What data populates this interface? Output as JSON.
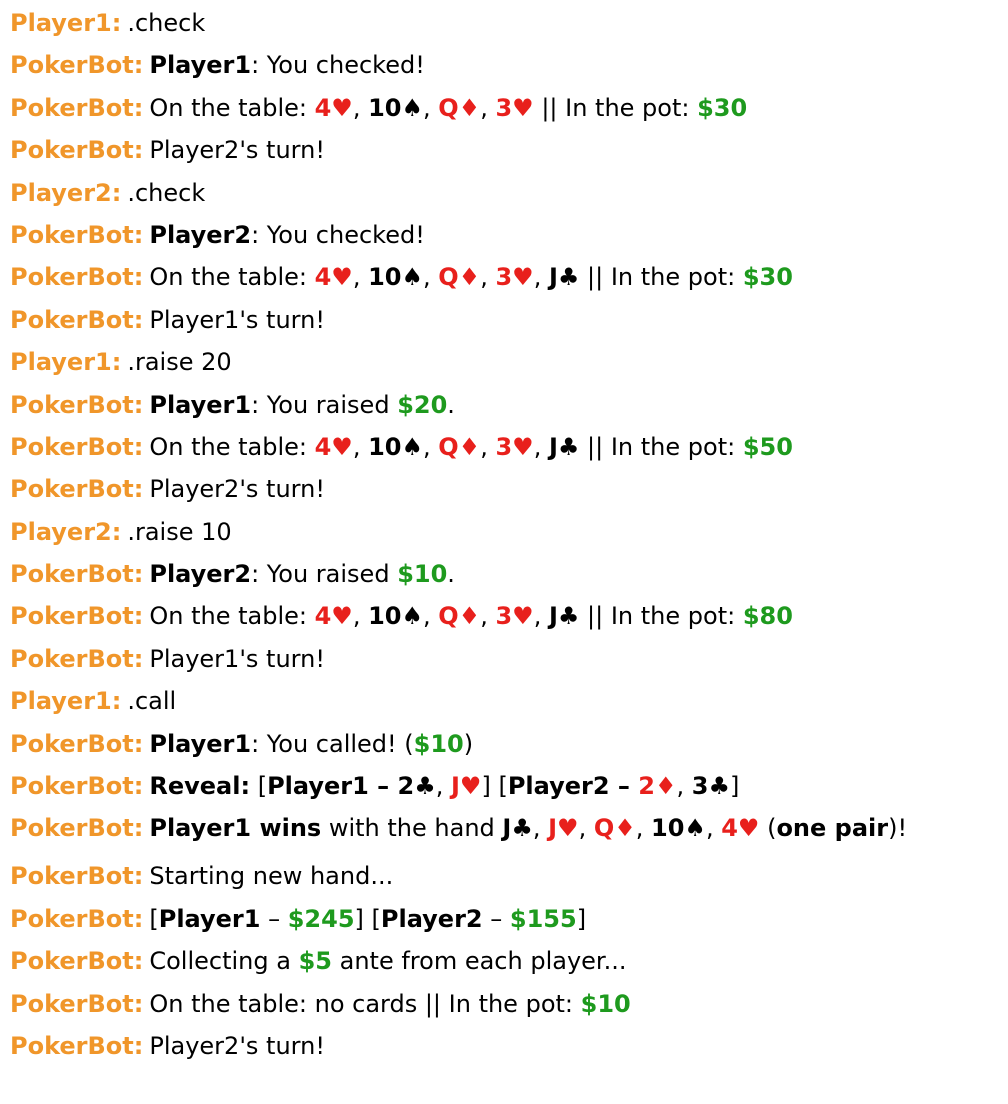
{
  "messages": [
    {
      "sender": "Player1:",
      "parts": [
        {
          "t": ".check",
          "s": "plain"
        }
      ]
    },
    {
      "sender": "PokerBot:",
      "parts": [
        {
          "t": "Player1",
          "s": "bold"
        },
        {
          "t": ": You checked!",
          "s": "plain"
        }
      ]
    },
    {
      "sender": "PokerBot:",
      "parts": [
        {
          "t": "On the table: ",
          "s": "plain"
        },
        {
          "t": "4♥",
          "s": "red"
        },
        {
          "t": ", ",
          "s": "plain"
        },
        {
          "t": "10♠",
          "s": "black"
        },
        {
          "t": ", ",
          "s": "plain"
        },
        {
          "t": "Q♦",
          "s": "red"
        },
        {
          "t": ", ",
          "s": "plain"
        },
        {
          "t": "3♥",
          "s": "red"
        },
        {
          "t": " || In the pot: ",
          "s": "plain"
        },
        {
          "t": "$30",
          "s": "money"
        }
      ]
    },
    {
      "sender": "PokerBot:",
      "parts": [
        {
          "t": "Player2's turn!",
          "s": "plain"
        }
      ]
    },
    {
      "sender": "Player2:",
      "parts": [
        {
          "t": ".check",
          "s": "plain"
        }
      ]
    },
    {
      "sender": "PokerBot:",
      "parts": [
        {
          "t": "Player2",
          "s": "bold"
        },
        {
          "t": ": You checked!",
          "s": "plain"
        }
      ]
    },
    {
      "sender": "PokerBot:",
      "parts": [
        {
          "t": "On the table: ",
          "s": "plain"
        },
        {
          "t": "4♥",
          "s": "red"
        },
        {
          "t": ", ",
          "s": "plain"
        },
        {
          "t": "10♠",
          "s": "black"
        },
        {
          "t": ", ",
          "s": "plain"
        },
        {
          "t": "Q♦",
          "s": "red"
        },
        {
          "t": ", ",
          "s": "plain"
        },
        {
          "t": "3♥",
          "s": "red"
        },
        {
          "t": ", ",
          "s": "plain"
        },
        {
          "t": "J♣",
          "s": "black"
        },
        {
          "t": " || In the pot: ",
          "s": "plain"
        },
        {
          "t": "$30",
          "s": "money"
        }
      ]
    },
    {
      "sender": "PokerBot:",
      "parts": [
        {
          "t": "Player1's turn!",
          "s": "plain"
        }
      ]
    },
    {
      "sender": "Player1:",
      "parts": [
        {
          "t": ".raise 20",
          "s": "plain"
        }
      ]
    },
    {
      "sender": "PokerBot:",
      "parts": [
        {
          "t": "Player1",
          "s": "bold"
        },
        {
          "t": ": You raised ",
          "s": "plain"
        },
        {
          "t": "$20",
          "s": "money"
        },
        {
          "t": ".",
          "s": "plain"
        }
      ]
    },
    {
      "sender": "PokerBot:",
      "parts": [
        {
          "t": "On the table: ",
          "s": "plain"
        },
        {
          "t": "4♥",
          "s": "red"
        },
        {
          "t": ", ",
          "s": "plain"
        },
        {
          "t": "10♠",
          "s": "black"
        },
        {
          "t": ", ",
          "s": "plain"
        },
        {
          "t": "Q♦",
          "s": "red"
        },
        {
          "t": ", ",
          "s": "plain"
        },
        {
          "t": "3♥",
          "s": "red"
        },
        {
          "t": ", ",
          "s": "plain"
        },
        {
          "t": "J♣",
          "s": "black"
        },
        {
          "t": " || In the pot: ",
          "s": "plain"
        },
        {
          "t": "$50",
          "s": "money"
        }
      ]
    },
    {
      "sender": "PokerBot:",
      "parts": [
        {
          "t": "Player2's turn!",
          "s": "plain"
        }
      ]
    },
    {
      "sender": "Player2:",
      "parts": [
        {
          "t": ".raise 10",
          "s": "plain"
        }
      ]
    },
    {
      "sender": "PokerBot:",
      "parts": [
        {
          "t": "Player2",
          "s": "bold"
        },
        {
          "t": ": You raised ",
          "s": "plain"
        },
        {
          "t": "$10",
          "s": "money"
        },
        {
          "t": ".",
          "s": "plain"
        }
      ]
    },
    {
      "sender": "PokerBot:",
      "parts": [
        {
          "t": "On the table: ",
          "s": "plain"
        },
        {
          "t": "4♥",
          "s": "red"
        },
        {
          "t": ", ",
          "s": "plain"
        },
        {
          "t": "10♠",
          "s": "black"
        },
        {
          "t": ", ",
          "s": "plain"
        },
        {
          "t": "Q♦",
          "s": "red"
        },
        {
          "t": ", ",
          "s": "plain"
        },
        {
          "t": "3♥",
          "s": "red"
        },
        {
          "t": ", ",
          "s": "plain"
        },
        {
          "t": "J♣",
          "s": "black"
        },
        {
          "t": " || In the pot: ",
          "s": "plain"
        },
        {
          "t": "$80",
          "s": "money"
        }
      ]
    },
    {
      "sender": "PokerBot:",
      "parts": [
        {
          "t": "Player1's turn!",
          "s": "plain"
        }
      ]
    },
    {
      "sender": "Player1:",
      "parts": [
        {
          "t": ".call",
          "s": "plain"
        }
      ]
    },
    {
      "sender": "PokerBot:",
      "parts": [
        {
          "t": "Player1",
          "s": "bold"
        },
        {
          "t": ": You called! (",
          "s": "plain"
        },
        {
          "t": "$10",
          "s": "money"
        },
        {
          "t": ")",
          "s": "plain"
        }
      ]
    },
    {
      "sender": "PokerBot:",
      "parts": [
        {
          "t": "Reveal:",
          "s": "bold"
        },
        {
          "t": " [",
          "s": "plain"
        },
        {
          "t": "Player1 – ",
          "s": "bold"
        },
        {
          "t": "2♣",
          "s": "black"
        },
        {
          "t": ", ",
          "s": "plain"
        },
        {
          "t": "J♥",
          "s": "red"
        },
        {
          "t": "] [",
          "s": "plain"
        },
        {
          "t": "Player2 – ",
          "s": "bold"
        },
        {
          "t": "2♦",
          "s": "red"
        },
        {
          "t": ", ",
          "s": "plain"
        },
        {
          "t": "3♣",
          "s": "black"
        },
        {
          "t": "]",
          "s": "plain"
        }
      ]
    },
    {
      "sender": "PokerBot:",
      "tall": true,
      "parts": [
        {
          "t": "Player1 wins",
          "s": "bold"
        },
        {
          "t": " with the hand ",
          "s": "plain"
        },
        {
          "t": "J♣",
          "s": "black"
        },
        {
          "t": ", ",
          "s": "plain"
        },
        {
          "t": "J♥",
          "s": "red"
        },
        {
          "t": ", ",
          "s": "plain"
        },
        {
          "t": "Q♦",
          "s": "red"
        },
        {
          "t": ", ",
          "s": "plain"
        },
        {
          "t": "10♠",
          "s": "black"
        },
        {
          "t": ", ",
          "s": "plain"
        },
        {
          "t": "4♥",
          "s": "red"
        },
        {
          "t": " (",
          "s": "plain"
        },
        {
          "t": "one pair",
          "s": "bold"
        },
        {
          "t": ")!",
          "s": "plain"
        }
      ]
    },
    {
      "sender": "PokerBot:",
      "parts": [
        {
          "t": "Starting new hand...",
          "s": "plain"
        }
      ]
    },
    {
      "sender": "PokerBot:",
      "parts": [
        {
          "t": "[",
          "s": "plain"
        },
        {
          "t": "Player1",
          "s": "bold"
        },
        {
          "t": " – ",
          "s": "plain"
        },
        {
          "t": "$245",
          "s": "money"
        },
        {
          "t": "] [",
          "s": "plain"
        },
        {
          "t": "Player2",
          "s": "bold"
        },
        {
          "t": " – ",
          "s": "plain"
        },
        {
          "t": "$155",
          "s": "money"
        },
        {
          "t": "]",
          "s": "plain"
        }
      ]
    },
    {
      "sender": "PokerBot:",
      "parts": [
        {
          "t": "Collecting a ",
          "s": "plain"
        },
        {
          "t": "$5",
          "s": "money"
        },
        {
          "t": " ante from each player...",
          "s": "plain"
        }
      ]
    },
    {
      "sender": "PokerBot:",
      "parts": [
        {
          "t": "On the table: no cards || In the pot: ",
          "s": "plain"
        },
        {
          "t": "$10",
          "s": "money"
        }
      ]
    },
    {
      "sender": "PokerBot:",
      "parts": [
        {
          "t": "Player2's turn!",
          "s": "plain"
        }
      ]
    }
  ],
  "colors": {
    "sender": "#f0962a",
    "red_card": "#e8201c",
    "black_card": "#000000",
    "money": "#1e9a1e"
  }
}
